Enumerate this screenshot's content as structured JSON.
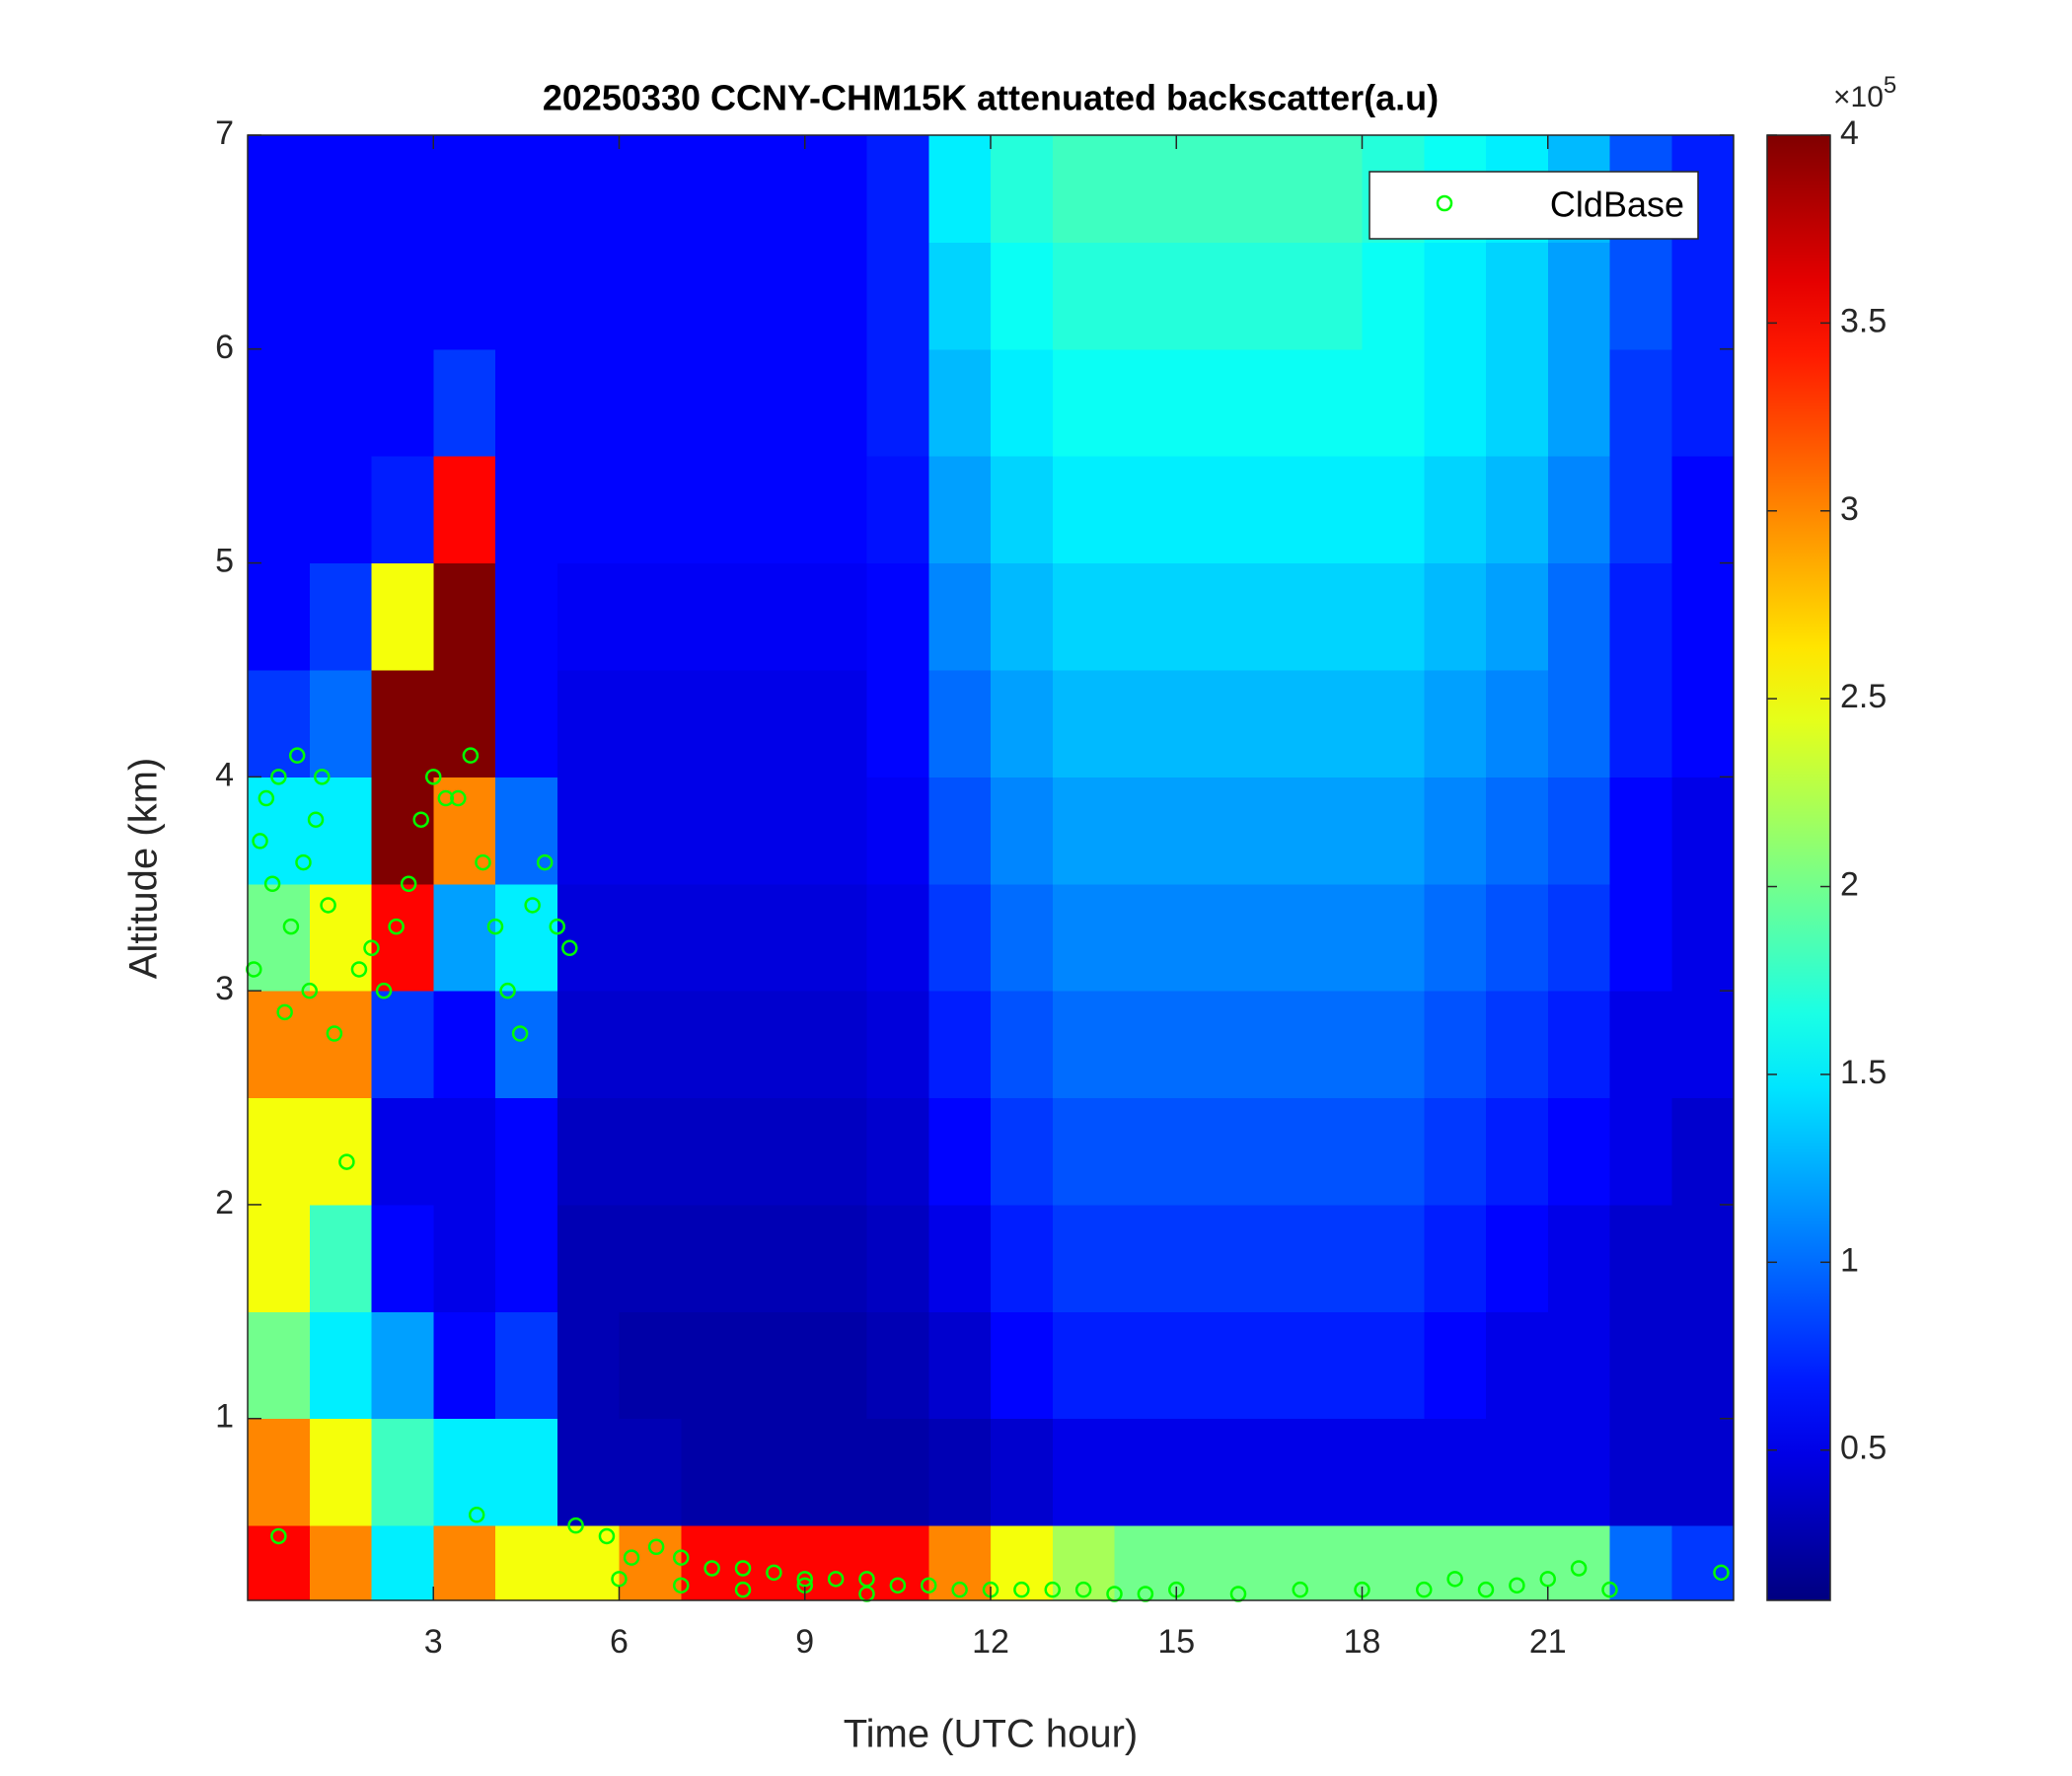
{
  "chart_data": {
    "type": "heatmap",
    "title": "20250330 CCNY-CHM15K attenuated backscatter(a.u)",
    "x_label": "Time (UTC hour)",
    "y_label": "Altitude (km)",
    "xlim": [
      0,
      24
    ],
    "ylim": [
      0.15,
      7
    ],
    "xticks": [
      3,
      6,
      9,
      12,
      15,
      18,
      21
    ],
    "yticks": [
      1,
      2,
      3,
      4,
      5,
      6,
      7
    ],
    "colormap": "jet",
    "clim": [
      0.1,
      4
    ],
    "cticks": [
      0.5,
      1,
      1.5,
      2,
      2.5,
      3,
      3.5,
      4
    ],
    "cbar_scale_base": "×10",
    "cbar_scale_exponent": "5",
    "legend_loc": "northeast",
    "x_edges": [
      0,
      1,
      2,
      3,
      4,
      5,
      6,
      7,
      8,
      9,
      10,
      11,
      12,
      13,
      14,
      15,
      16,
      17,
      18,
      19,
      20,
      21,
      22,
      23,
      24
    ],
    "y_edges": [
      0.15,
      0.5,
      1,
      1.5,
      2,
      2.5,
      3,
      3.5,
      4,
      4.5,
      5,
      5.5,
      6,
      6.5,
      7
    ],
    "z": [
      [
        3.5,
        3.0,
        1.5,
        3.0,
        2.5,
        2.5,
        3.0,
        3.5,
        3.5,
        3.5,
        3.5,
        3.0,
        2.5,
        2.2,
        2.0,
        2.0,
        2.0,
        2.0,
        2.0,
        2.0,
        2.0,
        2.0,
        1.0,
        0.8
      ],
      [
        3.0,
        2.5,
        1.8,
        1.5,
        1.5,
        0.3,
        0.3,
        0.25,
        0.25,
        0.25,
        0.25,
        0.3,
        0.4,
        0.5,
        0.5,
        0.5,
        0.5,
        0.5,
        0.5,
        0.5,
        0.5,
        0.5,
        0.4,
        0.4
      ],
      [
        2.0,
        1.5,
        1.2,
        0.6,
        0.8,
        0.3,
        0.25,
        0.25,
        0.25,
        0.25,
        0.3,
        0.4,
        0.6,
        0.7,
        0.7,
        0.7,
        0.7,
        0.7,
        0.7,
        0.6,
        0.5,
        0.5,
        0.4,
        0.4
      ],
      [
        2.5,
        1.8,
        0.6,
        0.5,
        0.6,
        0.3,
        0.3,
        0.3,
        0.3,
        0.3,
        0.35,
        0.5,
        0.7,
        0.8,
        0.8,
        0.8,
        0.8,
        0.8,
        0.8,
        0.7,
        0.6,
        0.5,
        0.4,
        0.4
      ],
      [
        2.5,
        2.5,
        0.5,
        0.5,
        0.6,
        0.35,
        0.35,
        0.35,
        0.35,
        0.35,
        0.4,
        0.6,
        0.8,
        0.9,
        0.9,
        0.9,
        0.9,
        0.9,
        0.9,
        0.8,
        0.7,
        0.6,
        0.5,
        0.4
      ],
      [
        3.0,
        3.0,
        0.8,
        0.6,
        1.0,
        0.4,
        0.4,
        0.4,
        0.4,
        0.4,
        0.45,
        0.7,
        0.9,
        1.0,
        1.0,
        1.0,
        1.0,
        1.0,
        1.0,
        0.9,
        0.8,
        0.7,
        0.5,
        0.5
      ],
      [
        2.0,
        2.5,
        3.5,
        1.2,
        1.5,
        0.45,
        0.45,
        0.45,
        0.45,
        0.45,
        0.5,
        0.8,
        1.0,
        1.1,
        1.1,
        1.1,
        1.1,
        1.1,
        1.1,
        1.0,
        0.9,
        0.8,
        0.6,
        0.5
      ],
      [
        1.5,
        1.5,
        4.0,
        3.0,
        1.0,
        0.5,
        0.5,
        0.5,
        0.5,
        0.5,
        0.55,
        0.9,
        1.1,
        1.2,
        1.2,
        1.2,
        1.2,
        1.2,
        1.2,
        1.1,
        1.0,
        0.9,
        0.6,
        0.5
      ],
      [
        0.8,
        1.0,
        4.0,
        4.0,
        0.6,
        0.5,
        0.5,
        0.5,
        0.5,
        0.5,
        0.6,
        1.0,
        1.2,
        1.3,
        1.3,
        1.3,
        1.3,
        1.3,
        1.3,
        1.2,
        1.1,
        1.0,
        0.7,
        0.6
      ],
      [
        0.6,
        0.8,
        2.5,
        4.0,
        0.6,
        0.55,
        0.55,
        0.55,
        0.55,
        0.55,
        0.6,
        1.1,
        1.3,
        1.4,
        1.4,
        1.4,
        1.4,
        1.4,
        1.4,
        1.3,
        1.2,
        1.0,
        0.7,
        0.6
      ],
      [
        0.6,
        0.6,
        0.7,
        3.5,
        0.6,
        0.6,
        0.6,
        0.6,
        0.6,
        0.6,
        0.65,
        1.2,
        1.4,
        1.5,
        1.5,
        1.5,
        1.5,
        1.5,
        1.5,
        1.4,
        1.3,
        1.1,
        0.8,
        0.6
      ],
      [
        0.6,
        0.6,
        0.6,
        0.8,
        0.6,
        0.6,
        0.6,
        0.6,
        0.6,
        0.6,
        0.7,
        1.3,
        1.5,
        1.6,
        1.6,
        1.6,
        1.6,
        1.6,
        1.6,
        1.5,
        1.4,
        1.2,
        0.8,
        0.7
      ],
      [
        0.6,
        0.6,
        0.6,
        0.6,
        0.6,
        0.6,
        0.6,
        0.6,
        0.6,
        0.6,
        0.7,
        1.4,
        1.6,
        1.7,
        1.7,
        1.7,
        1.7,
        1.7,
        1.6,
        1.5,
        1.4,
        1.2,
        0.9,
        0.7
      ],
      [
        0.6,
        0.6,
        0.6,
        0.6,
        0.6,
        0.6,
        0.6,
        0.6,
        0.6,
        0.6,
        0.7,
        1.5,
        1.7,
        1.8,
        1.8,
        1.8,
        1.8,
        1.8,
        1.7,
        1.6,
        1.5,
        1.3,
        0.9,
        0.7
      ]
    ],
    "series": [
      {
        "name": "CldBase",
        "color": "#00ff00",
        "x": [
          0.1,
          0.2,
          0.3,
          0.4,
          0.5,
          0.6,
          0.7,
          0.8,
          0.9,
          1.0,
          1.1,
          1.2,
          1.3,
          1.4,
          1.6,
          1.8,
          2.0,
          2.2,
          2.4,
          2.6,
          2.8,
          3.0,
          3.2,
          3.4,
          3.6,
          3.8,
          4.0,
          4.2,
          4.4,
          4.6,
          4.8,
          5.0,
          5.2,
          0.5,
          3.7,
          5.3,
          5.8,
          6.2,
          6.6,
          7.0,
          7.5,
          8.0,
          8.5,
          9.0,
          9.5,
          10.0,
          10.5,
          11.0,
          11.5,
          12.0,
          12.5,
          13.0,
          13.5,
          14.0,
          14.5,
          15.0,
          16.0,
          17.0,
          18.0,
          19.0,
          19.5,
          20.0,
          20.5,
          21.0,
          21.5,
          22.0,
          23.8,
          6,
          7,
          8,
          9,
          10
        ],
        "y": [
          3.1,
          3.7,
          3.9,
          3.5,
          4.0,
          2.9,
          3.3,
          4.1,
          3.6,
          3.0,
          3.8,
          4.0,
          3.4,
          2.8,
          2.2,
          3.1,
          3.2,
          3.0,
          3.3,
          3.5,
          3.8,
          4.0,
          3.9,
          3.9,
          4.1,
          3.6,
          3.3,
          3.0,
          2.8,
          3.4,
          3.6,
          3.3,
          3.2,
          0.45,
          0.55,
          0.5,
          0.45,
          0.35,
          0.4,
          0.35,
          0.3,
          0.3,
          0.28,
          0.25,
          0.25,
          0.25,
          0.22,
          0.22,
          0.2,
          0.2,
          0.2,
          0.2,
          0.2,
          0.18,
          0.18,
          0.2,
          0.18,
          0.2,
          0.2,
          0.2,
          0.25,
          0.2,
          0.22,
          0.25,
          0.3,
          0.2,
          0.28,
          0.25,
          0.22,
          0.2,
          0.22,
          0.18
        ]
      }
    ]
  }
}
